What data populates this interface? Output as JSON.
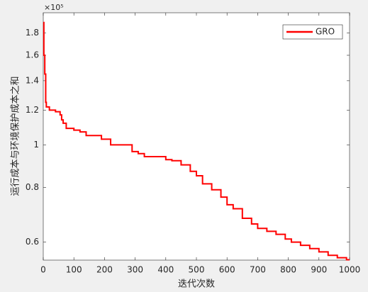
{
  "chart_data": {
    "type": "line",
    "xlabel": "迭代次数",
    "ylabel": "运行成本与环境保护成本之和",
    "y_multiplier": "×10⁵",
    "log_y": true,
    "step": true,
    "legend_position": "upper right",
    "x": [
      0,
      2,
      5,
      8,
      10,
      20,
      40,
      55,
      60,
      65,
      75,
      100,
      120,
      140,
      180,
      190,
      210,
      220,
      280,
      290,
      310,
      330,
      390,
      400,
      420,
      450,
      480,
      500,
      520,
      550,
      580,
      600,
      620,
      650,
      680,
      700,
      730,
      760,
      790,
      810,
      840,
      870,
      900,
      930,
      960,
      990,
      1000
    ],
    "series": [
      {
        "name": "GRO",
        "color": "#ff0000",
        "values": [
          190000,
          160000,
          145000,
          125000,
          122000,
          120000,
          119000,
          117000,
          114000,
          112000,
          109000,
          108000,
          107000,
          105000,
          105000,
          103000,
          103000,
          100000,
          100000,
          96500,
          95500,
          94000,
          94000,
          92500,
          92000,
          90000,
          87000,
          85000,
          81500,
          79000,
          76000,
          73000,
          71500,
          68000,
          66000,
          64500,
          63500,
          62500,
          61000,
          60000,
          59000,
          58000,
          57000,
          56000,
          55300,
          54700,
          54700
        ]
      }
    ],
    "xlim": [
      0,
      1000
    ],
    "xticks": [
      0,
      100,
      200,
      300,
      400,
      500,
      600,
      700,
      800,
      900,
      1000
    ],
    "ylim": [
      54600,
      200000
    ],
    "yticks": [
      {
        "value": 60000,
        "label": "0.6"
      },
      {
        "value": 80000,
        "label": "0.8"
      },
      {
        "value": 100000,
        "label": "1"
      },
      {
        "value": 120000,
        "label": "1.2"
      },
      {
        "value": 140000,
        "label": "1.4"
      },
      {
        "value": 160000,
        "label": "1.6"
      },
      {
        "value": 180000,
        "label": "1.8"
      }
    ]
  }
}
